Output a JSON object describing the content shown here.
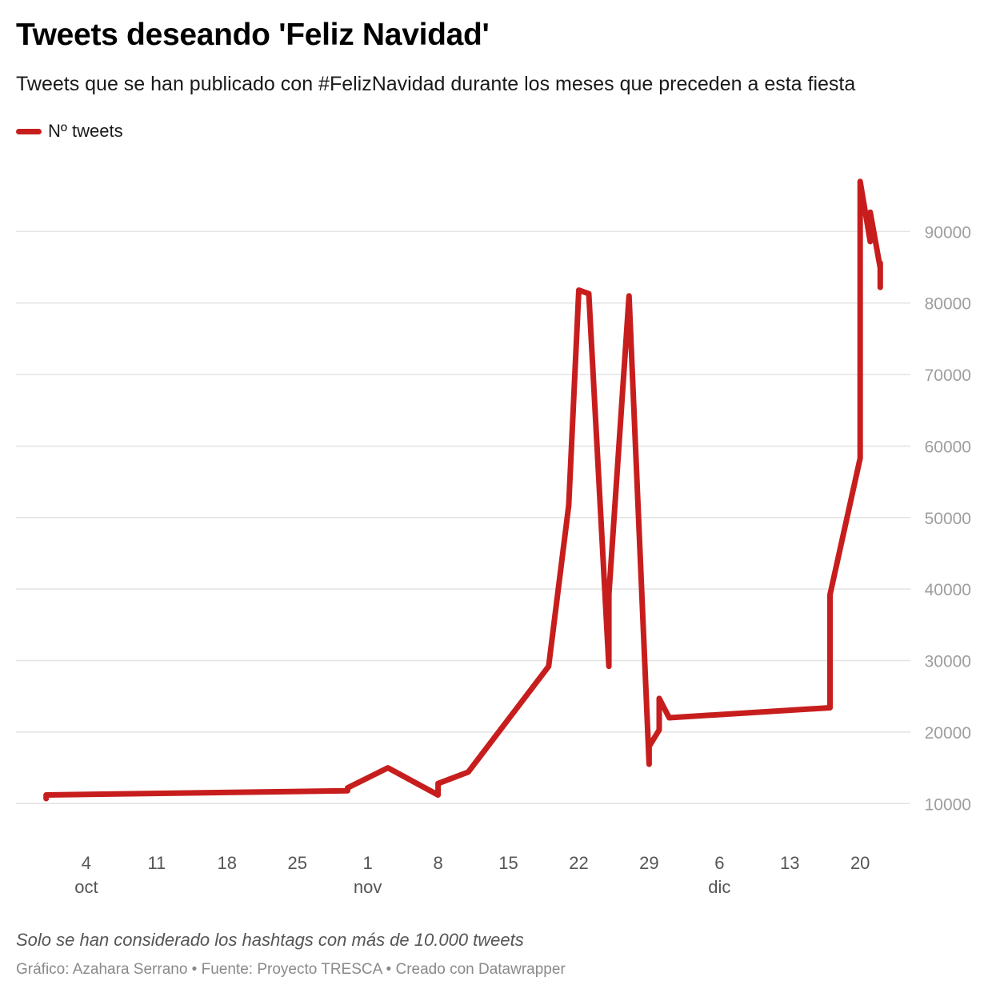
{
  "title": "Tweets deseando 'Feliz Navidad'",
  "subtitle": "Tweets que se han publicado con #FelizNavidad durante los meses que preceden a esta fiesta",
  "note": "Solo se han considerado los hashtags con más de 10.000 tweets",
  "credits": {
    "chart": "Gráfico: Azahara Serrano",
    "source": "Fuente: Proyecto TRESCA",
    "tool": "Creado con Datawrapper",
    "separator": " • "
  },
  "colors": {
    "line": "#c71e1d",
    "grid": "#e3e3e3",
    "tick": "#9e9e9e",
    "xtick": "#555555"
  },
  "chart_data": {
    "type": "line",
    "series": [
      {
        "name": "Nº tweets",
        "points": [
          [
            "2023-09-30",
            10700
          ],
          [
            "2023-09-30",
            11200
          ],
          [
            "2023-10-30",
            11800
          ],
          [
            "2023-10-30",
            12200
          ],
          [
            "2023-11-03",
            15000
          ],
          [
            "2023-11-08",
            11200
          ],
          [
            "2023-11-08",
            12800
          ],
          [
            "2023-11-11",
            14400
          ],
          [
            "2023-11-19",
            29200
          ],
          [
            "2023-11-21",
            51700
          ],
          [
            "2023-11-22",
            81800
          ],
          [
            "2023-11-23",
            81300
          ],
          [
            "2023-11-25",
            29200
          ],
          [
            "2023-11-25",
            39200
          ],
          [
            "2023-11-27",
            81000
          ],
          [
            "2023-11-29",
            15500
          ],
          [
            "2023-11-29",
            18000
          ],
          [
            "2023-11-30",
            20300
          ],
          [
            "2023-11-30",
            24700
          ],
          [
            "2023-12-01",
            22000
          ],
          [
            "2023-12-17",
            23400
          ],
          [
            "2023-12-17",
            39200
          ],
          [
            "2023-12-20",
            58300
          ],
          [
            "2023-12-20",
            97000
          ],
          [
            "2023-12-21",
            88600
          ],
          [
            "2023-12-21",
            92700
          ],
          [
            "2023-12-22",
            84900
          ],
          [
            "2023-12-22",
            82200
          ],
          [
            "2023-12-22",
            85600
          ]
        ]
      }
    ],
    "y_ticks": [
      10000,
      20000,
      30000,
      40000,
      50000,
      60000,
      70000,
      80000,
      90000
    ],
    "ylim": [
      6000,
      100000
    ],
    "xlim": [
      "2023-09-27",
      "2023-12-25"
    ],
    "x_ticks": [
      {
        "date": "2023-10-04",
        "label": "4",
        "month": "oct"
      },
      {
        "date": "2023-10-11",
        "label": "11",
        "month": ""
      },
      {
        "date": "2023-10-18",
        "label": "18",
        "month": ""
      },
      {
        "date": "2023-10-25",
        "label": "25",
        "month": ""
      },
      {
        "date": "2023-11-01",
        "label": "1",
        "month": "nov"
      },
      {
        "date": "2023-11-08",
        "label": "8",
        "month": ""
      },
      {
        "date": "2023-11-15",
        "label": "15",
        "month": ""
      },
      {
        "date": "2023-11-22",
        "label": "22",
        "month": ""
      },
      {
        "date": "2023-11-29",
        "label": "29",
        "month": ""
      },
      {
        "date": "2023-12-06",
        "label": "6",
        "month": "dic"
      },
      {
        "date": "2023-12-13",
        "label": "13",
        "month": ""
      },
      {
        "date": "2023-12-20",
        "label": "20",
        "month": ""
      }
    ],
    "y_axis_side": "right",
    "grid": true,
    "legend": "top-left"
  }
}
